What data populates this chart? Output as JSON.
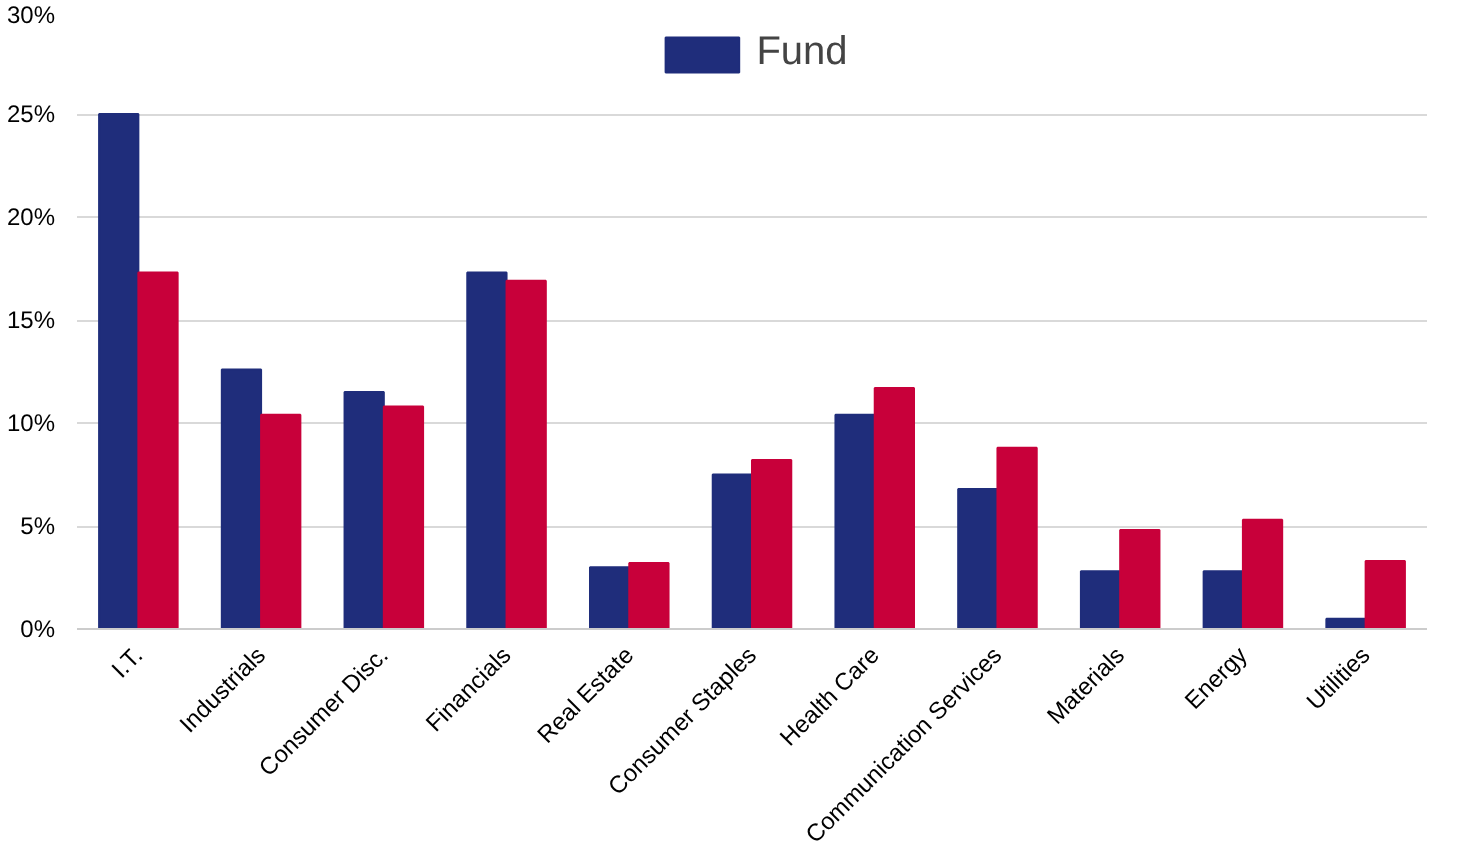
{
  "chart_data": {
    "type": "bar",
    "categories": [
      "I.T.",
      "Industrials",
      "Consumer Disc.",
      "Financials",
      "Real Estate",
      "Consumer Staples",
      "Health Care",
      "Communication Services",
      "Materials",
      "Energy",
      "Utilities"
    ],
    "series": [
      {
        "name": "Fund",
        "color": "#1f2d7b",
        "values": [
          25.0,
          12.6,
          11.5,
          17.3,
          3.0,
          7.5,
          10.4,
          6.8,
          2.8,
          2.8,
          0.5
        ]
      },
      {
        "color": "#c8003a",
        "values": [
          17.3,
          10.4,
          10.8,
          16.9,
          3.2,
          8.2,
          11.7,
          8.8,
          4.8,
          5.3,
          3.3
        ]
      }
    ],
    "ylim": [
      0,
      30
    ],
    "yticks": [
      {
        "value": 0,
        "label": "0%"
      },
      {
        "value": 5,
        "label": "5%"
      },
      {
        "value": 10,
        "label": "10%"
      },
      {
        "value": 15,
        "label": "15%"
      },
      {
        "value": 20,
        "label": "20%"
      },
      {
        "value": 25,
        "label": "25%"
      },
      {
        "value": 30,
        "label": "30%"
      }
    ],
    "grid": "y",
    "legend": "top"
  }
}
